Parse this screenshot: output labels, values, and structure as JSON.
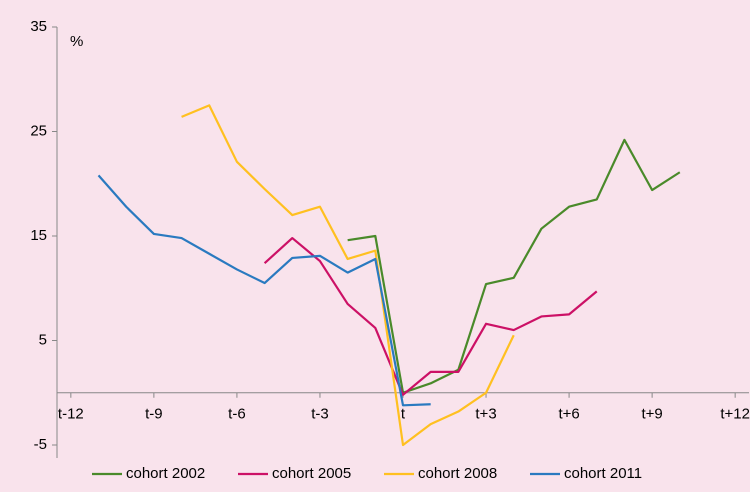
{
  "chart_data": {
    "type": "line",
    "y_label": "%",
    "x": [
      -11,
      -10,
      -9,
      -8,
      -7,
      -6,
      -5,
      -4,
      -3,
      -2,
      -1,
      0,
      1,
      2,
      3,
      4,
      5,
      6,
      7,
      8,
      9,
      10
    ],
    "series": [
      {
        "name": "cohort 2002",
        "color": "#4a8a2a",
        "values": [
          null,
          null,
          null,
          null,
          null,
          null,
          null,
          null,
          null,
          14.6,
          15.0,
          0.0,
          0.9,
          2.2,
          10.4,
          11.0,
          15.7,
          17.8,
          18.5,
          24.2,
          19.4,
          21.1
        ]
      },
      {
        "name": "cohort 2005",
        "color": "#cc1166",
        "values": [
          null,
          null,
          null,
          null,
          null,
          null,
          12.4,
          14.8,
          12.6,
          8.5,
          6.2,
          -0.2,
          2.0,
          2.0,
          6.6,
          6.0,
          7.3,
          7.5,
          9.7,
          null,
          null,
          null
        ]
      },
      {
        "name": "cohort 2008",
        "color": "#ffc020",
        "values": [
          null,
          null,
          null,
          26.4,
          27.5,
          22.1,
          19.5,
          17.0,
          17.8,
          12.8,
          13.6,
          -5.0,
          -3.0,
          -1.8,
          0.0,
          5.5,
          null,
          null,
          null,
          null,
          null,
          null
        ]
      },
      {
        "name": "cohort 2011",
        "color": "#2a7ac0",
        "values": [
          20.8,
          17.8,
          15.2,
          14.8,
          13.3,
          11.8,
          10.5,
          12.9,
          13.1,
          11.5,
          12.8,
          -1.2,
          -1.1,
          null,
          null,
          null,
          null,
          null,
          null,
          null,
          null,
          null
        ]
      }
    ],
    "xlim": [
      -12.5,
      12.5
    ],
    "xticks": [
      {
        "value": -12,
        "label": "t-12"
      },
      {
        "value": -9,
        "label": "t-9"
      },
      {
        "value": -6,
        "label": "t-6"
      },
      {
        "value": -3,
        "label": "t-3"
      },
      {
        "value": 0,
        "label": "t"
      },
      {
        "value": 3,
        "label": "t+3"
      },
      {
        "value": 6,
        "label": "t+6"
      },
      {
        "value": 9,
        "label": "t+9"
      },
      {
        "value": 12,
        "label": "t+12"
      }
    ],
    "ylim": [
      -5,
      35
    ],
    "yticks": [
      -5,
      5,
      15,
      25,
      35
    ],
    "legend": "bottom"
  }
}
